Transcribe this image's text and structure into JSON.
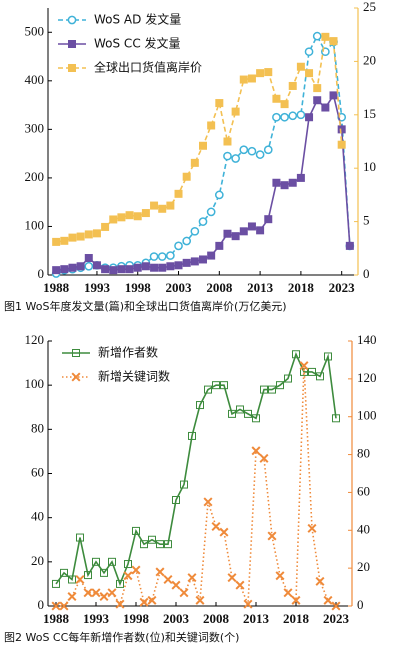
{
  "chart_data": [
    {
      "type": "line",
      "caption": "图1  WoS年度发文量(篇)和全球出口货值离岸价(万亿美元)",
      "x": [
        1988,
        1989,
        1990,
        1991,
        1992,
        1993,
        1994,
        1995,
        1996,
        1997,
        1998,
        1999,
        2000,
        2001,
        2002,
        2003,
        2004,
        2005,
        2006,
        2007,
        2008,
        2009,
        2010,
        2011,
        2012,
        2013,
        2014,
        2015,
        2016,
        2017,
        2018,
        2019,
        2020,
        2021,
        2022,
        2023,
        2024
      ],
      "xlim": [
        1987,
        2025
      ],
      "xticks": [
        1988,
        1993,
        1998,
        2003,
        2008,
        2013,
        2018,
        2023
      ],
      "ylim": [
        0,
        550
      ],
      "yticks": [
        0,
        100,
        200,
        300,
        400,
        500
      ],
      "y2lim": [
        0,
        25
      ],
      "y2ticks": [
        0,
        5,
        10,
        15,
        20,
        25
      ],
      "legend": "upper left",
      "series": [
        {
          "name": "WoS AD  发文量",
          "color": "#3fb2d8",
          "marker": "circle",
          "dash": "dashed",
          "values": [
            3,
            10,
            12,
            15,
            18,
            20,
            15,
            15,
            18,
            20,
            20,
            25,
            38,
            38,
            40,
            60,
            70,
            90,
            110,
            130,
            165,
            245,
            240,
            258,
            255,
            248,
            258,
            325,
            325,
            328,
            330,
            460,
            492,
            460,
            480,
            325,
            60
          ]
        },
        {
          "name": "WoS CC  发文量",
          "color": "#6b4fa3",
          "marker": "square",
          "dash": "solid",
          "values": [
            10,
            12,
            15,
            18,
            35,
            20,
            12,
            10,
            12,
            12,
            15,
            18,
            15,
            15,
            18,
            20,
            25,
            28,
            32,
            40,
            60,
            85,
            80,
            90,
            100,
            92,
            115,
            190,
            185,
            190,
            200,
            325,
            360,
            345,
            370,
            300,
            60
          ]
        },
        {
          "name": "全球出口货值离岸价",
          "color": "#f3c052",
          "marker": "square",
          "dash": "dashed",
          "axis": "y2",
          "values": [
            3.1,
            3.2,
            3.5,
            3.6,
            3.8,
            3.9,
            4.5,
            5.2,
            5.4,
            5.6,
            5.5,
            5.8,
            6.5,
            6.2,
            6.5,
            7.6,
            9.2,
            10.5,
            12.1,
            14.0,
            16.1,
            12.5,
            15.3,
            18.3,
            18.4,
            18.9,
            19.0,
            16.5,
            16.0,
            17.7,
            19.5,
            18.9,
            17.5,
            22.3,
            21.9,
            12.2,
            null
          ]
        }
      ]
    },
    {
      "type": "line",
      "caption": "图2  WoS CC每年新增作者数(位)和关键词数(个)",
      "x": [
        1988,
        1989,
        1990,
        1991,
        1992,
        1993,
        1994,
        1995,
        1996,
        1997,
        1998,
        1999,
        2000,
        2001,
        2002,
        2003,
        2004,
        2005,
        2006,
        2007,
        2008,
        2009,
        2010,
        2011,
        2012,
        2013,
        2014,
        2015,
        2016,
        2017,
        2018,
        2019,
        2020,
        2021,
        2022,
        2023
      ],
      "xlim": [
        1987,
        2025
      ],
      "xticks": [
        1988,
        1993,
        1998,
        2003,
        2008,
        2013,
        2018,
        2023
      ],
      "ylim": [
        0,
        120
      ],
      "yticks": [
        0,
        20,
        40,
        60,
        80,
        100,
        120
      ],
      "y2lim": [
        0,
        140
      ],
      "y2ticks": [
        0,
        20,
        40,
        60,
        80,
        100,
        120,
        140
      ],
      "legend": "upper left",
      "series": [
        {
          "name": "新增作者数",
          "color": "#3d8b3d",
          "marker": "square",
          "dash": "solid",
          "values": [
            10,
            15,
            12,
            31,
            14,
            20,
            15,
            20,
            10,
            19,
            34,
            28,
            30,
            28,
            28,
            48,
            55,
            77,
            91,
            98,
            100,
            100,
            87,
            89,
            87,
            85,
            98,
            98,
            100,
            103,
            114,
            106,
            106,
            104,
            113,
            85
          ]
        },
        {
          "name": "新增关键词数",
          "color": "#ef8a3a",
          "marker": "x",
          "dash": "dotted",
          "axis": "y2",
          "values": [
            0,
            0,
            5,
            14,
            7,
            7,
            5,
            7,
            1,
            16,
            19,
            2,
            3,
            18,
            14,
            11,
            7,
            15,
            3,
            55,
            42,
            39,
            15,
            11,
            1,
            82,
            78,
            37,
            16,
            7,
            3,
            127,
            41,
            13,
            3,
            0
          ]
        }
      ]
    }
  ]
}
